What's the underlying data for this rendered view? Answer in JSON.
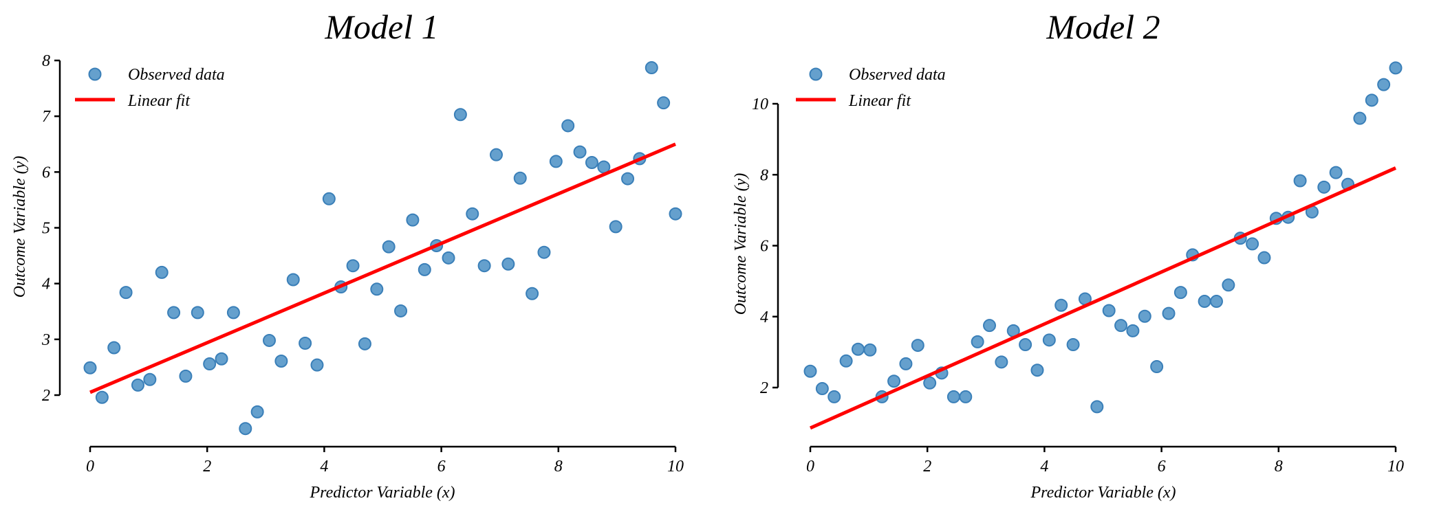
{
  "chart_data": [
    {
      "type": "scatter",
      "title": "Model 1",
      "xlabel": "Predictor Variable (x)",
      "ylabel": "Outcome Variable (y)",
      "xlim": [
        0,
        10
      ],
      "ylim": [
        1.1,
        8
      ],
      "xticks": [
        0,
        2,
        4,
        6,
        8,
        10
      ],
      "yticks": [
        2,
        3,
        4,
        5,
        6,
        7,
        8
      ],
      "grid": false,
      "legend_position": "top-left",
      "legend": [
        "Observed data",
        "Linear fit"
      ],
      "series": [
        {
          "name": "Observed data",
          "kind": "scatter",
          "color": "#4a8fc4",
          "y": [
            2.49,
            1.96,
            2.85,
            3.84,
            2.18,
            2.28,
            4.2,
            3.48,
            2.34,
            3.48,
            2.56,
            2.65,
            3.48,
            1.4,
            1.7,
            2.98,
            2.61,
            4.07,
            2.93,
            2.54,
            5.52,
            3.94,
            4.32,
            2.92,
            3.9,
            4.66,
            3.51,
            5.14,
            4.25,
            4.68,
            4.46,
            7.03,
            5.25,
            4.32,
            6.31,
            4.35,
            5.89,
            3.82,
            4.56,
            6.19,
            6.83,
            6.36,
            6.17,
            6.09,
            5.02,
            5.88,
            6.24,
            7.87,
            7.24,
            5.25
          ]
        },
        {
          "name": "Linear fit",
          "kind": "line",
          "color": "#ff0000",
          "x": [
            0,
            10
          ],
          "y": [
            2.05,
            6.5
          ]
        }
      ],
      "x_points": {
        "start": 0,
        "stop": 10,
        "count": 50
      }
    },
    {
      "type": "scatter",
      "title": "Model 2",
      "xlabel": "Predictor Variable (x)",
      "ylabel": "Outcome Variable (y)",
      "xlim": [
        0,
        10
      ],
      "ylim": [
        0.4,
        11.2
      ],
      "xticks": [
        0,
        2,
        4,
        6,
        8,
        10
      ],
      "yticks": [
        2,
        4,
        6,
        8,
        10
      ],
      "grid": false,
      "legend_position": "top-left",
      "legend": [
        "Observed data",
        "Linear fit"
      ],
      "series": [
        {
          "name": "Observed data",
          "kind": "scatter",
          "color": "#4a8fc4",
          "y": [
            2.46,
            1.97,
            1.74,
            2.75,
            3.08,
            3.06,
            1.74,
            2.18,
            2.67,
            3.19,
            2.13,
            2.41,
            1.74,
            1.74,
            3.29,
            3.75,
            2.72,
            3.6,
            3.21,
            2.49,
            3.34,
            4.32,
            3.21,
            4.5,
            1.46,
            4.17,
            3.75,
            3.6,
            4.01,
            2.59,
            4.09,
            4.68,
            5.74,
            4.43,
            4.43,
            4.89,
            6.21,
            6.05,
            5.66,
            6.77,
            6.8,
            7.83,
            6.95,
            7.65,
            8.06,
            7.73,
            9.59,
            10.1,
            10.54,
            11.01
          ]
        },
        {
          "name": "Linear fit",
          "kind": "line",
          "color": "#ff0000",
          "x": [
            0,
            10
          ],
          "y": [
            0.86,
            8.19
          ]
        }
      ],
      "x_points": {
        "start": 0,
        "stop": 10,
        "count": 50
      }
    }
  ]
}
